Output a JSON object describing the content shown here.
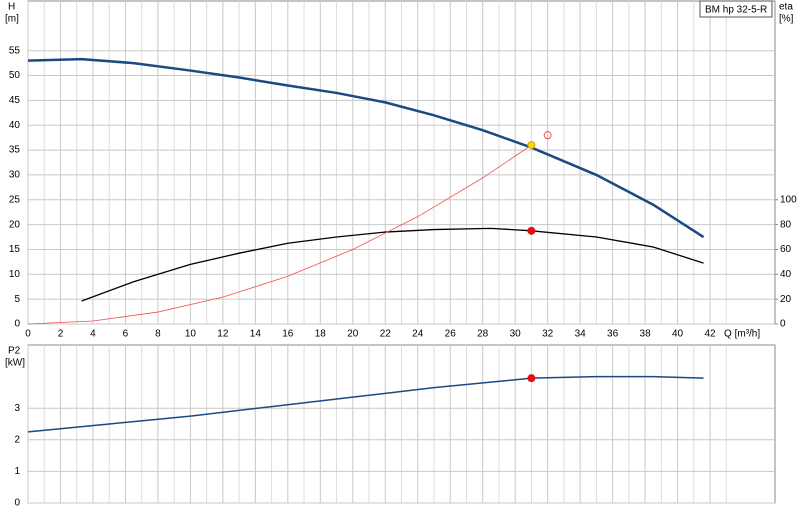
{
  "chart_data": [
    {
      "type": "line",
      "ylabel": "H",
      "yunit": "[m]",
      "y2label": "eta",
      "y2unit": "[%]",
      "xlabel": "Q [m³/h]",
      "legend": "BM hp 32-5-R",
      "xlim": [
        0,
        46
      ],
      "xticks": [
        0,
        2,
        4,
        6,
        8,
        10,
        12,
        14,
        16,
        18,
        20,
        22,
        24,
        26,
        28,
        30,
        32,
        34,
        36,
        38,
        40,
        42
      ],
      "xtick_labels": true,
      "ylim": [
        0,
        65
      ],
      "yticks": [
        0,
        5,
        10,
        15,
        20,
        25,
        30,
        35,
        40,
        45,
        50,
        55
      ],
      "y2lim": [
        0,
        260
      ],
      "y2ticks": [
        0,
        20,
        40,
        60,
        80,
        100
      ],
      "grid": true,
      "series": [
        {
          "color": "#1a4a80",
          "width": 2.5,
          "x": [
            0,
            3.3,
            6.5,
            10,
            13,
            16,
            19,
            22,
            25,
            28,
            31,
            35,
            38.5,
            41.6
          ],
          "values": [
            53,
            53.3,
            52.5,
            51,
            49.6,
            48,
            46.5,
            44.6,
            42,
            39,
            35.5,
            30,
            24,
            17.5
          ]
        },
        {
          "color": "#000000",
          "width": 1.3,
          "axis": "y2",
          "x": [
            3.3,
            6.5,
            10,
            13,
            16,
            19,
            22,
            25,
            28.5,
            31,
            35,
            38.5,
            41.6
          ],
          "values": [
            18.5,
            34,
            48,
            57,
            65,
            70,
            74,
            76,
            77,
            75,
            70,
            62,
            49
          ]
        },
        {
          "color": "#f05050",
          "width": 0.8,
          "x": [
            0,
            4,
            8,
            12,
            16,
            20,
            24,
            28,
            31
          ],
          "values": [
            0,
            0.6,
            2.4,
            5.4,
            9.6,
            15,
            21.6,
            29.4,
            36
          ]
        }
      ],
      "points": [
        {
          "x": 31,
          "y": 36,
          "color": "#ffd400",
          "style": "filled"
        },
        {
          "x": 31,
          "y": 75,
          "axis": "y2",
          "color": "#e01010",
          "style": "filled"
        },
        {
          "x": 32,
          "y": 38,
          "color": "#f05050",
          "style": "hollow"
        }
      ]
    },
    {
      "type": "line",
      "ylabel": "P2",
      "yunit": "[kW]",
      "xlim": [
        0,
        46
      ],
      "xticks": [
        0,
        2,
        4,
        6,
        8,
        10,
        12,
        14,
        16,
        18,
        20,
        22,
        24,
        26,
        28,
        30,
        32,
        34,
        36,
        38,
        40,
        42
      ],
      "xtick_labels": false,
      "ylim": [
        0,
        5
      ],
      "yticks": [
        0,
        1,
        2,
        3
      ],
      "grid": true,
      "series": [
        {
          "color": "#1a4a80",
          "width": 1.5,
          "x": [
            0,
            5,
            10,
            15,
            20,
            25,
            31,
            35,
            38.5,
            41.6
          ],
          "values": [
            2.25,
            2.5,
            2.75,
            3.05,
            3.35,
            3.65,
            3.95,
            4.0,
            4.0,
            3.95
          ]
        }
      ],
      "points": [
        {
          "x": 31,
          "y": 3.95,
          "color": "#e01010",
          "style": "filled"
        }
      ]
    }
  ]
}
